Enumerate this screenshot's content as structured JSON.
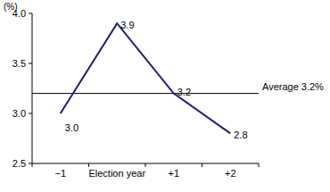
{
  "chart_data": {
    "type": "line",
    "y_label": "(%)",
    "categories": [
      "−1",
      "Election year",
      "+1",
      "+2"
    ],
    "values": [
      3.0,
      3.9,
      3.2,
      2.8
    ],
    "value_labels": [
      "3.0",
      "3.9",
      "3.2",
      "2.8"
    ],
    "data_labels": true,
    "color": "#1c1c7a",
    "marker": "none",
    "ylim": [
      2.5,
      4.0
    ],
    "yticks": [
      2.5,
      {
        "value": 3,
        "label": "3.0"
      },
      3.5,
      {
        "value": 4,
        "label": "4.0"
      }
    ],
    "grid": false,
    "reference_line": {
      "value": 3.2,
      "label": "Average 3.2%"
    }
  }
}
